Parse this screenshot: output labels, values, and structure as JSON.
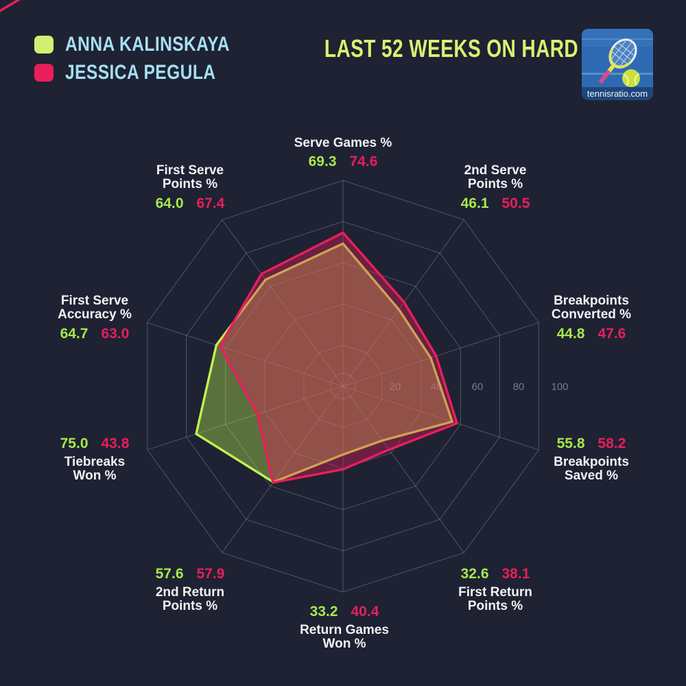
{
  "header": {
    "title": "LAST 52 WEEKS ON HARD",
    "legend": [
      {
        "name": "ANNA KALINSKAYA",
        "color": "#d2ef73"
      },
      {
        "name": "JESSICA PEGULA",
        "color": "#ea1e5b"
      }
    ],
    "logo_text": "tennisratio.com"
  },
  "colors": {
    "background": "#1e2233",
    "kalinskaya_stroke": "#bff24f",
    "kalinskaya_text": "#a6e94a",
    "pegula": "#ea1e5b",
    "names_cyan": "#a5dff2",
    "title_yellow": "#dcf06e",
    "axis_label_white": "#f2f2f2",
    "tick_text": "#6e7c98",
    "grid_line": "rgba(205,214,240,0.28)"
  },
  "chart_data": {
    "type": "radar",
    "title": "LAST 52 WEEKS ON HARD",
    "max": 100,
    "radial_ticks": [
      20,
      40,
      60,
      80,
      100
    ],
    "grid": "decagon, spokes from center, ticks along right horizontal axis",
    "legend_position": "top-left",
    "axes": [
      {
        "label": "Serve Games %",
        "kalinskaya": "69.3",
        "pegula": "74.6"
      },
      {
        "label": "2nd Serve\nPoints %",
        "kalinskaya": "46.1",
        "pegula": "50.5"
      },
      {
        "label": "Breakpoints\nConverted %",
        "kalinskaya": "44.8",
        "pegula": "47.6"
      },
      {
        "label": "Breakpoints\nSaved %",
        "kalinskaya": "55.8",
        "pegula": "58.2"
      },
      {
        "label": "First Return\nPoints %",
        "kalinskaya": "32.6",
        "pegula": "38.1"
      },
      {
        "label": "Return Games\nWon %",
        "kalinskaya": "33.2",
        "pegula": "40.4"
      },
      {
        "label": "2nd Return\nPoints %",
        "kalinskaya": "57.6",
        "pegula": "57.9"
      },
      {
        "label": "Tiebreaks\nWon %",
        "kalinskaya": "75.0",
        "pegula": "43.8"
      },
      {
        "label": "First Serve\nAccuracy %",
        "kalinskaya": "64.7",
        "pegula": "63.0"
      },
      {
        "label": "First Serve\nPoints %",
        "kalinskaya": "64.0",
        "pegula": "67.4"
      }
    ],
    "series": [
      {
        "name": "Anna Kalinskaya",
        "values": [
          69.3,
          46.1,
          44.8,
          55.8,
          32.6,
          33.2,
          57.6,
          75.0,
          64.7,
          64.0
        ]
      },
      {
        "name": "Jessica Pegula",
        "values": [
          74.6,
          50.5,
          47.6,
          58.2,
          38.1,
          40.4,
          57.9,
          43.8,
          63.0,
          67.4
        ]
      }
    ]
  }
}
